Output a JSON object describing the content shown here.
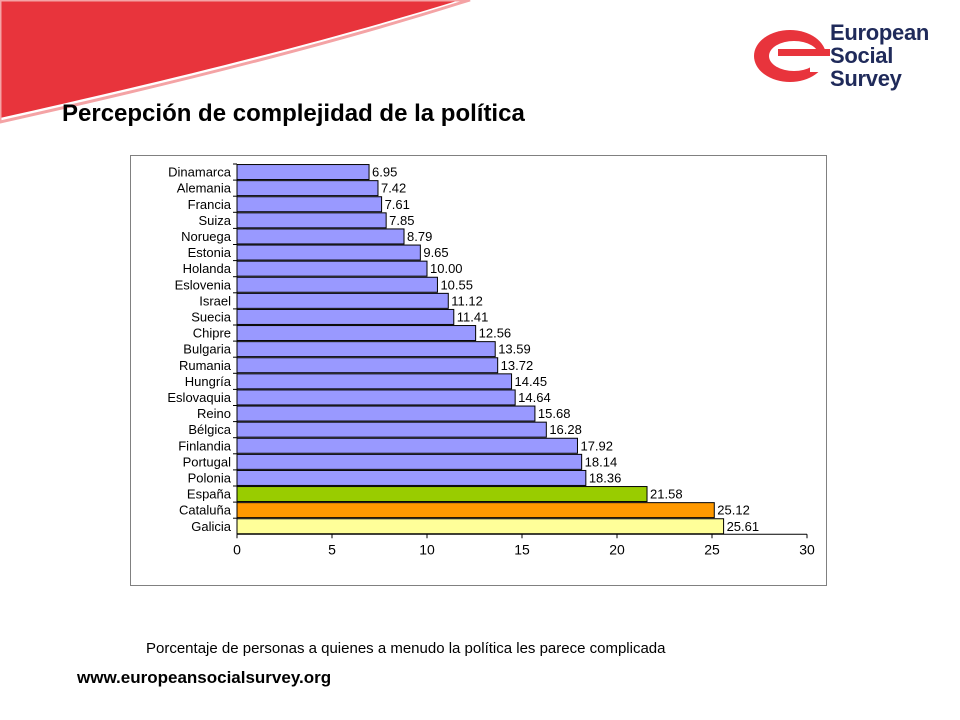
{
  "header": {
    "title": "Percepción de complejidad de la política",
    "logo_lines": [
      "European",
      "Social",
      "Survey"
    ],
    "accent_color": "#e8343c"
  },
  "chart_data": {
    "type": "bar",
    "orientation": "horizontal",
    "categories": [
      "Dinamarca",
      "Alemania",
      "Francia",
      "Suiza",
      "Noruega",
      "Estonia",
      "Holanda",
      "Eslovenia",
      "Israel",
      "Suecia",
      "Chipre",
      "Bulgaria",
      "Rumania",
      "Hungría",
      "Eslovaquia",
      "Reino",
      "Bélgica",
      "Finlandia",
      "Portugal",
      "Polonia",
      "España",
      "Cataluña",
      "Galicia"
    ],
    "values": [
      6.95,
      7.42,
      7.61,
      7.85,
      8.79,
      9.65,
      10.0,
      10.55,
      11.12,
      11.41,
      12.56,
      13.59,
      13.72,
      14.45,
      14.64,
      15.68,
      16.28,
      17.92,
      18.14,
      18.36,
      21.58,
      25.12,
      25.61
    ],
    "value_labels": [
      "6.95",
      "7.42",
      "7.61",
      "7.85",
      "8.79",
      "9.65",
      "10.00",
      "10.55",
      "11.12",
      "11.41",
      "12.56",
      "13.59",
      "13.72",
      "14.45",
      "14.64",
      "15.68",
      "16.28",
      "17.92",
      "18.14",
      "18.36",
      "21.58",
      "25.12",
      "25.61"
    ],
    "xlim": [
      0,
      30
    ],
    "xticks": [
      "0",
      "5",
      "10",
      "15",
      "20",
      "25",
      "30"
    ],
    "grid": false,
    "colors": {
      "default": "#9999ff",
      "España": "#99cc00",
      "Cataluña": "#ff9900",
      "Galicia": "#ffff99"
    },
    "xlabel": "Porcentaje de personas a quienes a menudo la política les parece complicada"
  },
  "footer": {
    "url": "www.europeansocialsurvey.org"
  }
}
